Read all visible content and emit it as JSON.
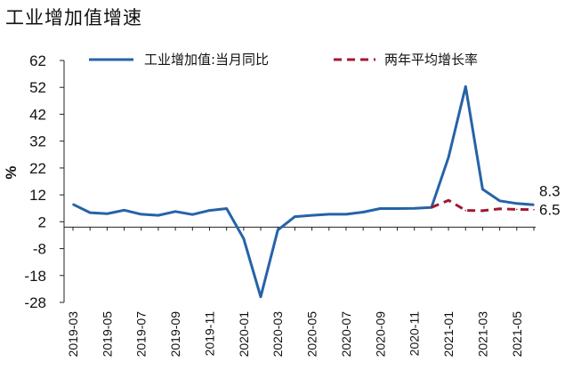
{
  "title": "工业增加值增速",
  "chart_data": {
    "type": "line",
    "title": "工业增加值增速",
    "ylabel": "%",
    "xlabel": "",
    "ylim": [
      -28,
      62
    ],
    "yticks": [
      62,
      52,
      42,
      32,
      22,
      12,
      2,
      -8,
      -18,
      -28
    ],
    "x": [
      "2019-03",
      "2019-04",
      "2019-05",
      "2019-06",
      "2019-07",
      "2019-08",
      "2019-09",
      "2019-10",
      "2019-11",
      "2019-12",
      "2020-01",
      "2020-02",
      "2020-03",
      "2020-04",
      "2020-05",
      "2020-06",
      "2020-07",
      "2020-08",
      "2020-09",
      "2020-10",
      "2020-11",
      "2020-12",
      "2021-01",
      "2021-02",
      "2021-03",
      "2021-04",
      "2021-05",
      "2021-06"
    ],
    "xticks": [
      "2019-03",
      "2019-05",
      "2019-07",
      "2019-09",
      "2019-11",
      "2020-01",
      "2020-03",
      "2020-05",
      "2020-07",
      "2020-09",
      "2020-11",
      "2021-01",
      "2021-03",
      "2021-05"
    ],
    "legend": "top",
    "series": [
      {
        "name": "工业增加值:当月同比",
        "color": "#2563a8",
        "style": "solid",
        "values": [
          8.5,
          5.4,
          5.0,
          6.3,
          4.8,
          4.4,
          5.8,
          4.7,
          6.2,
          6.9,
          -4.3,
          -25.9,
          -1.1,
          3.9,
          4.4,
          4.8,
          4.8,
          5.6,
          6.9,
          6.9,
          7.0,
          7.3,
          26.0,
          52.3,
          14.1,
          9.8,
          8.8,
          8.3
        ]
      },
      {
        "name": "两年平均增长率",
        "color": "#a3182f",
        "style": "dashed",
        "values": [
          null,
          null,
          null,
          null,
          null,
          null,
          null,
          null,
          null,
          null,
          null,
          null,
          null,
          null,
          null,
          null,
          null,
          null,
          null,
          null,
          null,
          7.3,
          10.0,
          6.2,
          6.1,
          6.8,
          6.6,
          6.5
        ]
      }
    ],
    "end_labels": [
      "8.3",
      "6.5"
    ]
  }
}
